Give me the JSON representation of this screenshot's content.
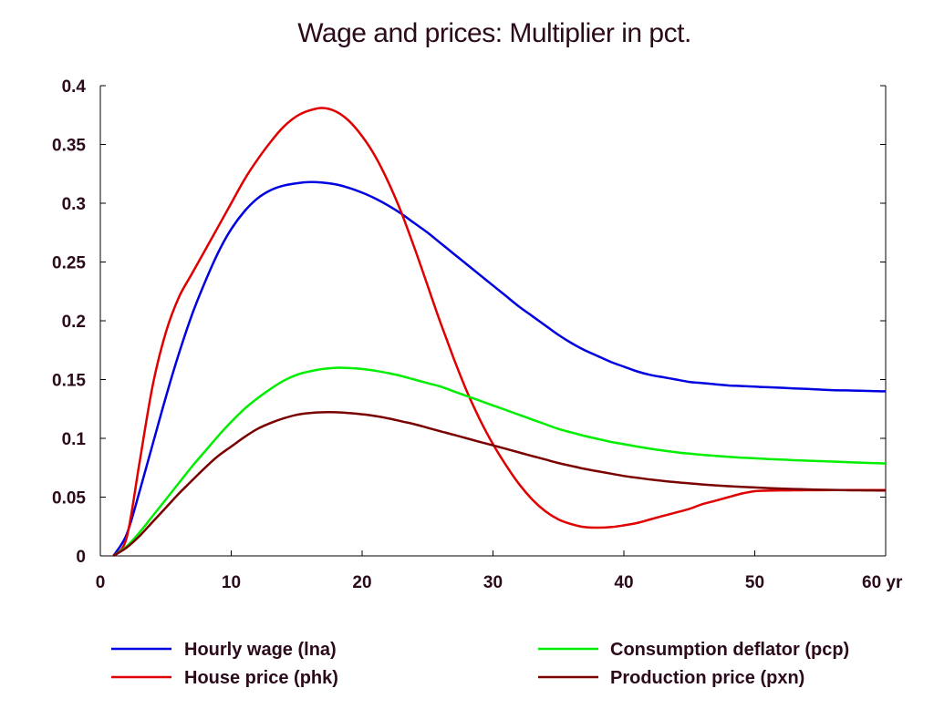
{
  "chart_data": {
    "type": "line",
    "title": "Wage and prices: Multiplier in pct.",
    "xlabel": "",
    "ylabel": "",
    "x_unit": "yr",
    "xlim": [
      0,
      60
    ],
    "ylim": [
      0,
      0.4
    ],
    "xticks": [
      0,
      10,
      20,
      30,
      40,
      50,
      60
    ],
    "yticks": [
      0,
      0.05,
      0.1,
      0.15,
      0.2,
      0.25,
      0.3,
      0.35,
      0.4
    ],
    "x": [
      1,
      2,
      3,
      4,
      5,
      6,
      7,
      8,
      9,
      10,
      11,
      12,
      13,
      14,
      15,
      16,
      17,
      18,
      19,
      20,
      21,
      22,
      23,
      24,
      25,
      26,
      27,
      28,
      29,
      30,
      31,
      32,
      33,
      34,
      35,
      36,
      37,
      38,
      39,
      40,
      41,
      42,
      43,
      44,
      45,
      46,
      47,
      48,
      49,
      50,
      51,
      52,
      53,
      54,
      55,
      56,
      57,
      58,
      59,
      60
    ],
    "grid": false,
    "legend_position": "bottom",
    "series": [
      {
        "name": "Hourly wage (lna)",
        "color": "#0000e0",
        "values": [
          0,
          0.018,
          0.055,
          0.095,
          0.135,
          0.172,
          0.205,
          0.233,
          0.258,
          0.278,
          0.293,
          0.304,
          0.311,
          0.315,
          0.317,
          0.318,
          0.3175,
          0.316,
          0.313,
          0.309,
          0.304,
          0.298,
          0.291,
          0.283,
          0.275,
          0.266,
          0.257,
          0.248,
          0.239,
          0.23,
          0.221,
          0.212,
          0.204,
          0.196,
          0.188,
          0.181,
          0.175,
          0.17,
          0.165,
          0.161,
          0.157,
          0.154,
          0.152,
          0.15,
          0.148,
          0.147,
          0.146,
          0.145,
          0.1445,
          0.144,
          0.1435,
          0.143,
          0.1425,
          0.142,
          0.1415,
          0.141,
          0.1408,
          0.1405,
          0.1402,
          0.14
        ]
      },
      {
        "name": "House price (phk)",
        "color": "#e00000",
        "values": [
          0,
          0.015,
          0.08,
          0.145,
          0.19,
          0.22,
          0.24,
          0.26,
          0.28,
          0.3,
          0.32,
          0.337,
          0.352,
          0.365,
          0.374,
          0.379,
          0.381,
          0.378,
          0.37,
          0.357,
          0.34,
          0.318,
          0.292,
          0.262,
          0.23,
          0.198,
          0.168,
          0.14,
          0.116,
          0.095,
          0.077,
          0.061,
          0.048,
          0.038,
          0.031,
          0.027,
          0.0245,
          0.024,
          0.0245,
          0.026,
          0.028,
          0.031,
          0.034,
          0.037,
          0.04,
          0.044,
          0.047,
          0.05,
          0.053,
          0.055,
          0.0555,
          0.0557,
          0.0558,
          0.0559,
          0.0559,
          0.056,
          0.056,
          0.056,
          0.056,
          0.056
        ]
      },
      {
        "name": "Consumption deflator (pcp)",
        "color": "#00ee00",
        "values": [
          0,
          0.008,
          0.02,
          0.034,
          0.048,
          0.062,
          0.076,
          0.089,
          0.102,
          0.114,
          0.125,
          0.134,
          0.142,
          0.149,
          0.154,
          0.157,
          0.159,
          0.16,
          0.1598,
          0.159,
          0.1575,
          0.1555,
          0.153,
          0.15,
          0.147,
          0.144,
          0.14,
          0.136,
          0.132,
          0.128,
          0.124,
          0.12,
          0.116,
          0.112,
          0.108,
          0.105,
          0.102,
          0.0995,
          0.097,
          0.095,
          0.093,
          0.0912,
          0.0896,
          0.0882,
          0.087,
          0.086,
          0.0851,
          0.0843,
          0.0836,
          0.083,
          0.0824,
          0.0819,
          0.0814,
          0.081,
          0.0806,
          0.0802,
          0.0798,
          0.0794,
          0.079,
          0.0786
        ]
      },
      {
        "name": "Production price (pxn)",
        "color": "#7a0000",
        "values": [
          0,
          0.007,
          0.017,
          0.029,
          0.041,
          0.053,
          0.064,
          0.075,
          0.085,
          0.093,
          0.101,
          0.108,
          0.113,
          0.117,
          0.12,
          0.1215,
          0.1222,
          0.1222,
          0.1215,
          0.1205,
          0.119,
          0.117,
          0.1145,
          0.112,
          0.109,
          0.106,
          0.103,
          0.1,
          0.097,
          0.094,
          0.091,
          0.088,
          0.085,
          0.082,
          0.079,
          0.0765,
          0.074,
          0.072,
          0.07,
          0.068,
          0.0665,
          0.065,
          0.0638,
          0.0627,
          0.0617,
          0.0608,
          0.06,
          0.0593,
          0.0587,
          0.0582,
          0.0577,
          0.0573,
          0.0569,
          0.0566,
          0.0563,
          0.0561,
          0.0559,
          0.0558,
          0.0557,
          0.0556
        ]
      }
    ]
  }
}
